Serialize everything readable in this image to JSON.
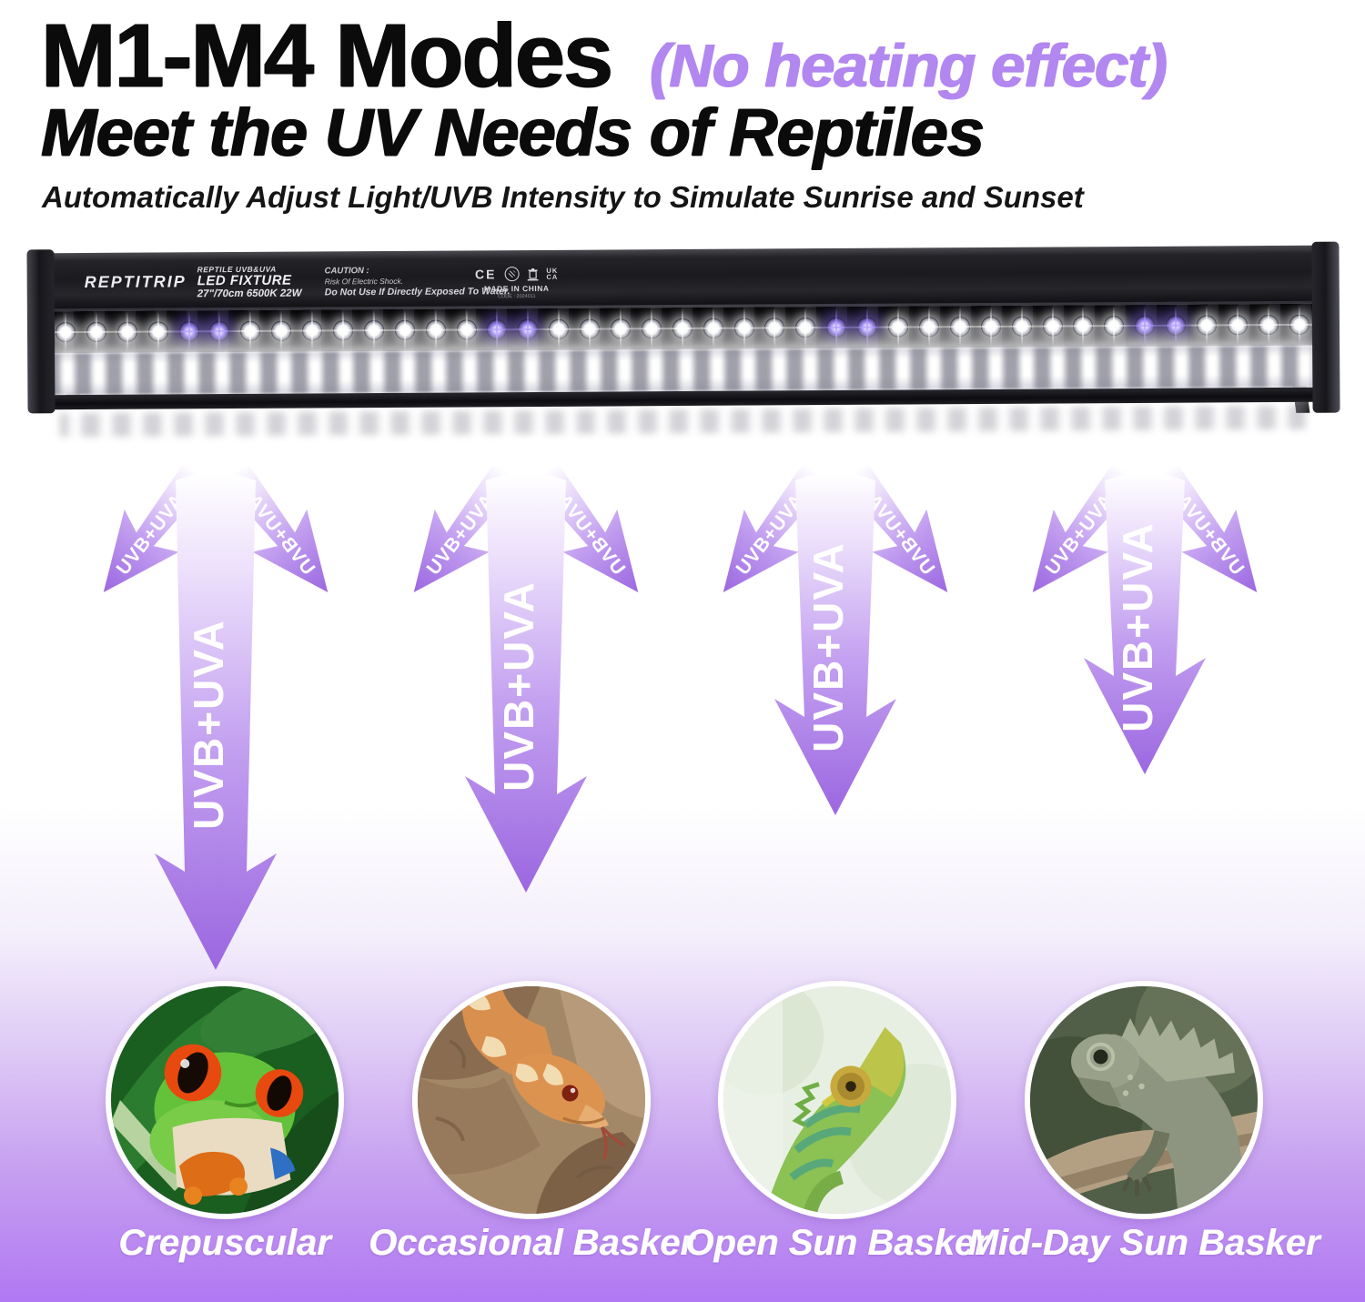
{
  "header": {
    "title": "M1-M4 Modes",
    "note": "(No heating effect)",
    "note_color": "#b287f0",
    "subtitle": "Meet the UV Needs of Reptiles",
    "tagline": "Automatically Adjust Light/UVB Intensity to Simulate Sunrise and Sunset"
  },
  "fixture": {
    "brand": "REPTITRIP",
    "type_small": "REPTILE UVB&UVA",
    "type_large": "LED FIXTURE",
    "specs": "27\"/70cm 6500K 22W",
    "caution_title": "CAUTION :",
    "caution_lines": [
      "Risk Of Electric Shock.",
      "Do Not Use If Directly Exposed To Water."
    ],
    "certs": {
      "ce": "CE",
      "ukca_top": "UK",
      "ukca_bottom": "CA"
    },
    "made_in": "MADE IN CHINA",
    "code": "CODE : 2024011"
  },
  "uv_arrows": {
    "beam_label": "UVB+UVA",
    "group_count": 4,
    "gradient_top": "#ffffff",
    "gradient_bottom": "#9b67e0"
  },
  "reptile_types": [
    {
      "label": "Crepuscular",
      "photo": "red-eyed-tree-frog"
    },
    {
      "label": "Occasional Basker",
      "photo": "corn-snake"
    },
    {
      "label": "Open Sun Basker",
      "photo": "veiled-chameleon"
    },
    {
      "label": "Mid-Day Sun Basker",
      "photo": "iguana"
    }
  ],
  "colors": {
    "accent_purple": "#b287f0",
    "bg_bottom": "#b078f2"
  }
}
